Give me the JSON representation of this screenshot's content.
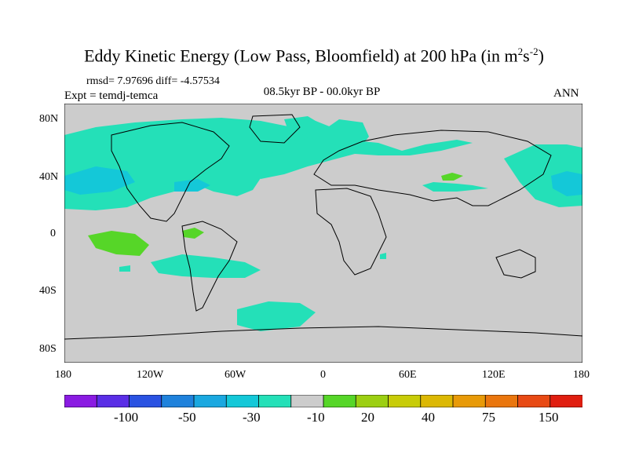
{
  "title": {
    "main": "Eddy Kinetic Energy (Low Pass, Bloomfield) at 200 hPa (in m",
    "sup1": "2",
    "mid": "s",
    "sup2": "-2",
    "end": ")"
  },
  "stats": "rmsd= 7.97696 diff= -4.57534",
  "experiment": "Expt = temdj-temca",
  "period": "08.5kyr BP - 00.0kyr BP",
  "season": "ANN",
  "y_ticks": [
    "80N",
    "40N",
    "0",
    "40S",
    "80S"
  ],
  "x_ticks": [
    "180",
    "120W",
    "60W",
    "0",
    "60E",
    "120E",
    "180"
  ],
  "colorbar": {
    "colors": [
      "#8a1be2",
      "#5a2ee6",
      "#2a52e2",
      "#1f82dc",
      "#1aa8e0",
      "#14c8d8",
      "#24e0b8",
      "#cccccc",
      "#56d628",
      "#9ccf12",
      "#c8cc08",
      "#dcb804",
      "#e89a08",
      "#ea760e",
      "#e84a14",
      "#e01e10"
    ],
    "labels": [
      "-100",
      "-50",
      "-30",
      "-10",
      "20",
      "40",
      "75",
      "150"
    ]
  },
  "legend_colors": {
    "background": "#cccccc",
    "weak_negative": "#24e0b8",
    "negative": "#14c8d8",
    "moderate_negative": "#1aa8e0",
    "positive": "#56d628"
  }
}
